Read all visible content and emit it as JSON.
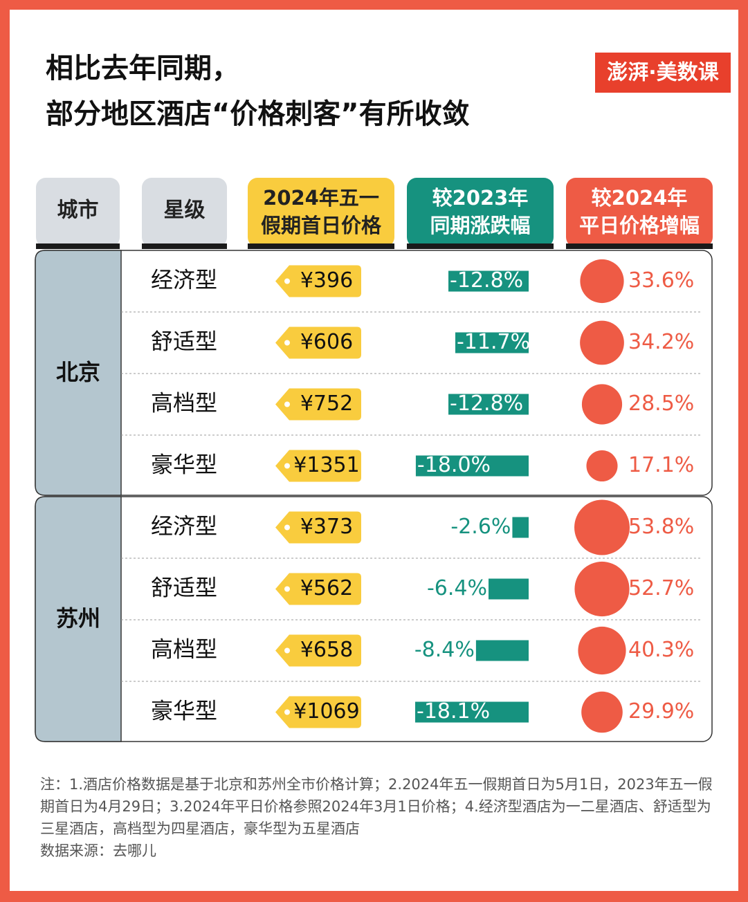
{
  "header": {
    "title_lines": [
      "相比去年同期，",
      "部分地区酒店“价格刺客”有所收敛"
    ],
    "logo": "澎湃·美数课"
  },
  "table": {
    "columns": [
      [
        "城市"
      ],
      [
        "星级"
      ],
      [
        "2024年五一",
        "假期首日价格"
      ],
      [
        "较2023年",
        "同期涨跌幅"
      ],
      [
        "较2024年",
        "平日价格增幅"
      ]
    ],
    "groups": [
      {
        "city": "北京",
        "rows": [
          {
            "star": "经济型",
            "price": "¥396",
            "yoy": -12.8,
            "yoy_label": "-12.8%",
            "weekday": 33.6,
            "weekday_label": "33.6%"
          },
          {
            "star": "舒适型",
            "price": "¥606",
            "yoy": -11.7,
            "yoy_label": "-11.7%",
            "weekday": 34.2,
            "weekday_label": "34.2%"
          },
          {
            "star": "高档型",
            "price": "¥752",
            "yoy": -12.8,
            "yoy_label": "-12.8%",
            "weekday": 28.5,
            "weekday_label": "28.5%"
          },
          {
            "star": "豪华型",
            "price": "¥1351",
            "yoy": -18.0,
            "yoy_label": "-18.0%",
            "weekday": 17.1,
            "weekday_label": "17.1%"
          }
        ]
      },
      {
        "city": "苏州",
        "rows": [
          {
            "star": "经济型",
            "price": "¥373",
            "yoy": -2.6,
            "yoy_label": "-2.6%",
            "weekday": 53.8,
            "weekday_label": "53.8%"
          },
          {
            "star": "舒适型",
            "price": "¥562",
            "yoy": -6.4,
            "yoy_label": "-6.4%",
            "weekday": 52.7,
            "weekday_label": "52.7%"
          },
          {
            "star": "高档型",
            "price": "¥658",
            "yoy": -8.4,
            "yoy_label": "-8.4%",
            "weekday": 40.3,
            "weekday_label": "40.3%"
          },
          {
            "star": "豪华型",
            "price": "¥1069",
            "yoy": -18.1,
            "yoy_label": "-18.1%",
            "weekday": 29.9,
            "weekday_label": "29.9%"
          }
        ]
      }
    ]
  },
  "notes": "注：1.酒店价格数据是基于北京和苏州全市价格计算；2.2024年五一假期首日为5月1日，2023年五一假期首日为4月29日；3.2024年平日价格参照2024年3月1日价格；4.经济型酒店为一二星酒店、舒适型为三星酒店，高档型为四星酒店，豪华型为五星酒店",
  "source": "数据来源：去哪儿"
}
